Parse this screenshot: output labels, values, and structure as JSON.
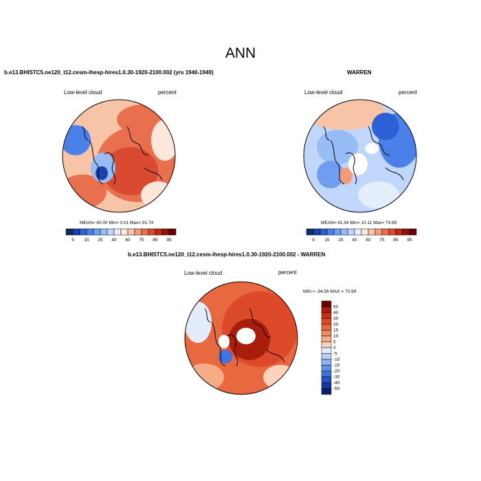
{
  "title": "ANN",
  "colors": {
    "land_outline": "#000000",
    "missing": "#ffffff"
  },
  "chart_data": [
    {
      "type": "heatmap",
      "title": "b.e13.BHISTC5.ne120_t12.cesm-ihesp-hires1.0.30-1920-2100.002 (yrs 1940-1949)",
      "left_label": "Low-level cloud",
      "right_label": "percent",
      "stats": {
        "mean": "60.00",
        "min": "0.01",
        "max": "91.74"
      },
      "stats_text": "MEAN=  60.00  Min=   0.01  Max=  91.74",
      "colorbar": {
        "levels": [
          5,
          10,
          15,
          20,
          25,
          30,
          40,
          50,
          60,
          70,
          75,
          80,
          85,
          90,
          95
        ],
        "tick_labels": [
          "5",
          "15",
          "25",
          "40",
          "60",
          "75",
          "85",
          "95"
        ],
        "colors": [
          "#08306b",
          "#1c3fa8",
          "#2d5fd6",
          "#4a80e8",
          "#6f9ef0",
          "#98bcf6",
          "#c0d6fa",
          "#e4eefd",
          "#fde7da",
          "#f8c4a8",
          "#f29b79",
          "#e9704f",
          "#d94a30",
          "#bd2719",
          "#941207",
          "#6b0000"
        ]
      }
    },
    {
      "type": "heatmap",
      "title": "WARREN",
      "left_label": "Low-level cloud",
      "right_label": "percent",
      "stats": {
        "mean": "41.54",
        "min": "10.11",
        "max": "74.99"
      },
      "stats_text": "MEAN=  41.54  Min=  10.11  Max=  74.99",
      "colorbar": {
        "levels": [
          5,
          10,
          15,
          20,
          25,
          30,
          40,
          50,
          60,
          70,
          75,
          80,
          85,
          90,
          95
        ],
        "tick_labels": [
          "5",
          "15",
          "25",
          "40",
          "60",
          "75",
          "85",
          "95"
        ],
        "colors": [
          "#08306b",
          "#1c3fa8",
          "#2d5fd6",
          "#4a80e8",
          "#6f9ef0",
          "#98bcf6",
          "#c0d6fa",
          "#e4eefd",
          "#fde7da",
          "#f8c4a8",
          "#f29b79",
          "#e9704f",
          "#d94a30",
          "#bd2719",
          "#941207",
          "#6b0000"
        ]
      }
    },
    {
      "type": "heatmap",
      "title": "b.e13.BHISTC5.ne120_t12.cesm-ihesp-hires1.0.30-1920-2100.002 - WARREN",
      "left_label": "Low-level cloud",
      "right_label": "percent",
      "stats": {
        "min": "-34.56",
        "max": "70.69"
      },
      "stats_text": "MIN = -34.56  MAX =  70.69",
      "colorbar": {
        "levels": [
          50,
          40,
          30,
          20,
          15,
          10,
          5,
          0,
          -5,
          -10,
          -15,
          -20,
          -30,
          -40,
          -50
        ],
        "tick_labels": [
          "50",
          "40",
          "30",
          "20",
          "15",
          "10",
          "5",
          "0",
          "-5",
          "-10",
          "-15",
          "-20",
          "-30",
          "-40",
          "-50"
        ],
        "colors": [
          "#6b0000",
          "#a81e0a",
          "#c93016",
          "#dc4a2a",
          "#e8683f",
          "#f08a60",
          "#f6ac86",
          "#fbd2bc",
          "#e2ecfb",
          "#b6cff6",
          "#8db2f0",
          "#6494ea",
          "#3f74e0",
          "#2653c4",
          "#17399c",
          "#0a1f6e"
        ]
      }
    }
  ]
}
